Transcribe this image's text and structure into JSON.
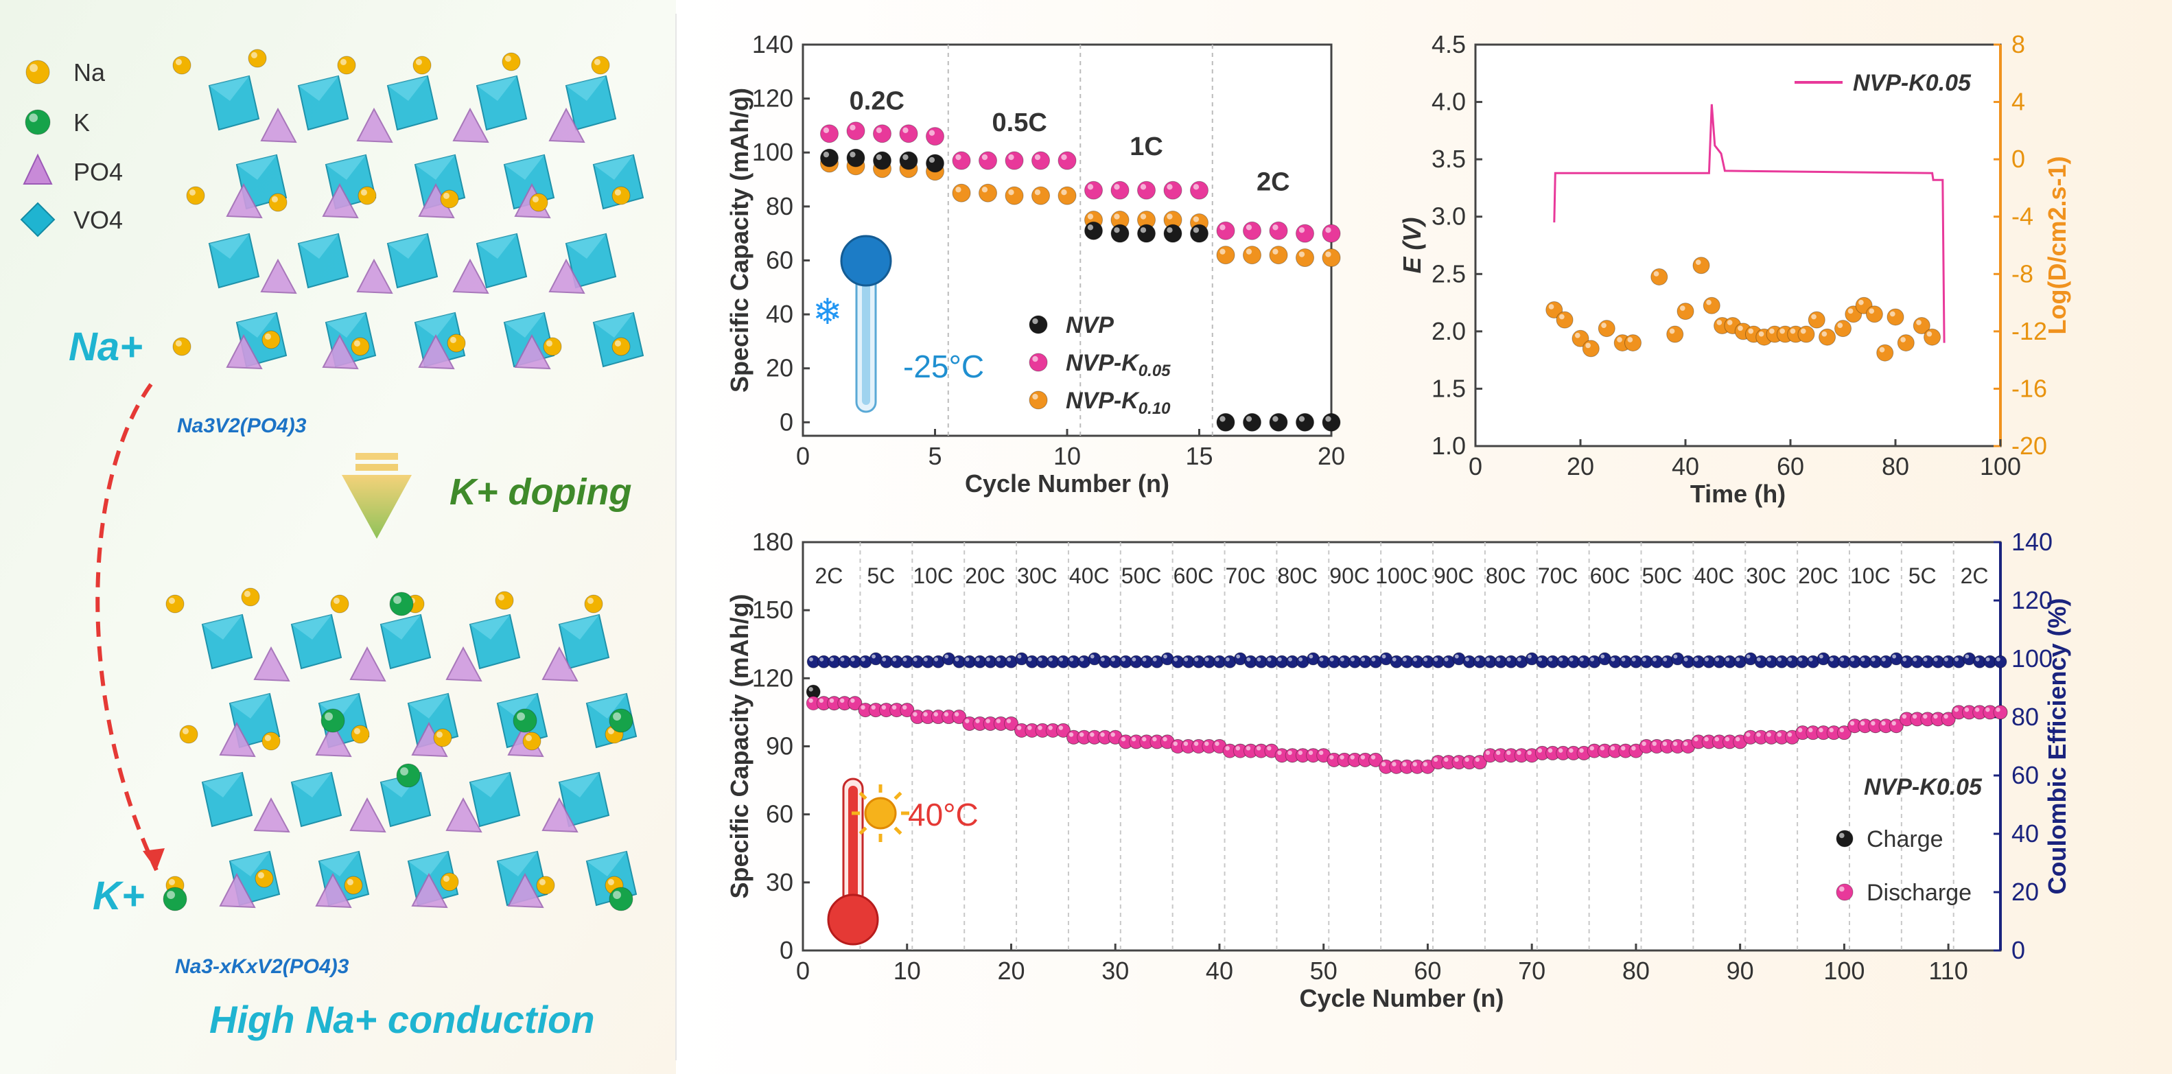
{
  "schematic": {
    "legend": [
      {
        "label": "Na",
        "color": "#f2b300"
      },
      {
        "label": "K",
        "color": "#16a34a"
      },
      {
        "label": "PO4",
        "color": "#c88ad8"
      },
      {
        "label": "VO4",
        "color": "#1fb4d1"
      }
    ],
    "na_ion_label": "Na+",
    "k_ion_label": "K+",
    "formula_top": "Na3V2(PO4)3",
    "formula_bottom": "Na3-xKxV2(PO4)3",
    "doping_label": "K+ doping",
    "caption": "High Na+ conduction"
  },
  "chart_data": [
    {
      "id": "rate_low_temp",
      "type": "scatter",
      "xlabel": "Cycle Number (n)",
      "ylabel": "Specific Capacity (mAh/g)",
      "xlim": [
        0,
        20
      ],
      "ylim": [
        -5,
        140
      ],
      "xticks": [
        0,
        5,
        10,
        15,
        20
      ],
      "yticks": [
        0,
        20,
        40,
        60,
        80,
        100,
        120,
        140
      ],
      "temperature": "-25°C",
      "rate_labels": [
        "0.2C",
        "0.5C",
        "1C",
        "2C"
      ],
      "series": [
        {
          "name": "NVP",
          "color": "#1a1a1a",
          "x": [
            1,
            2,
            3,
            4,
            5,
            6,
            7,
            8,
            9,
            10,
            11,
            12,
            13,
            14,
            15,
            16,
            17,
            18,
            19,
            20
          ],
          "values": [
            98,
            98,
            97,
            97,
            96,
            null,
            null,
            null,
            null,
            null,
            71,
            70,
            70,
            70,
            70,
            0,
            0,
            0,
            0,
            0
          ]
        },
        {
          "name": "NVP-K0.05",
          "color": "#e8399a",
          "x": [
            1,
            2,
            3,
            4,
            5,
            6,
            7,
            8,
            9,
            10,
            11,
            12,
            13,
            14,
            15,
            16,
            17,
            18,
            19,
            20
          ],
          "values": [
            107,
            108,
            107,
            107,
            106,
            97,
            97,
            97,
            97,
            97,
            86,
            86,
            86,
            86,
            86,
            71,
            71,
            71,
            70,
            70
          ]
        },
        {
          "name": "NVP-K0.10",
          "color": "#f0921e",
          "x": [
            1,
            2,
            3,
            4,
            5,
            6,
            7,
            8,
            9,
            10,
            11,
            12,
            13,
            14,
            15,
            16,
            17,
            18,
            19,
            20
          ],
          "values": [
            96,
            95,
            94,
            94,
            93,
            85,
            85,
            84,
            84,
            84,
            75,
            75,
            75,
            75,
            74,
            62,
            62,
            62,
            61,
            61
          ]
        }
      ],
      "legend_labels": [
        "NVP",
        "NVP-K",
        "NVP-K"
      ],
      "legend_subs": [
        "",
        "0.05",
        "0.10"
      ]
    },
    {
      "id": "gitt",
      "type": "line+scatter",
      "xlabel": "Time (h)",
      "ylabel": "E (V)",
      "ylabel_right": "Log(D/cm2.s-1)",
      "xlim": [
        0,
        100
      ],
      "ylim": [
        1.0,
        4.5
      ],
      "ylim_right": [
        -20,
        8
      ],
      "xticks": [
        0,
        20,
        40,
        60,
        80,
        100
      ],
      "yticks": [
        "1.0",
        "1.5",
        "2.0",
        "2.5",
        "3.0",
        "3.5",
        "4.0",
        "4.5"
      ],
      "yticks_right": [
        -20,
        -16,
        -12,
        -8,
        -4,
        0,
        4,
        8
      ],
      "legend": "NVP-K0.05",
      "voltage_curve": [
        [
          15,
          2.95
        ],
        [
          15.2,
          3.38
        ],
        [
          44.5,
          3.38
        ],
        [
          45,
          3.98
        ],
        [
          45.6,
          3.62
        ],
        [
          46.8,
          3.55
        ],
        [
          47.5,
          3.4
        ],
        [
          87,
          3.38
        ],
        [
          87.2,
          3.32
        ],
        [
          89,
          3.32
        ],
        [
          89.3,
          1.9
        ]
      ],
      "diffusivity": {
        "x": [
          15,
          17,
          20,
          22,
          25,
          28,
          30,
          35,
          38,
          40,
          43,
          45,
          47,
          49,
          51,
          53,
          55,
          57,
          59,
          61,
          63,
          65,
          67,
          70,
          72,
          74,
          76,
          78,
          80,
          82,
          85,
          87
        ],
        "y": [
          -10.5,
          -11.2,
          -12.5,
          -13.2,
          -11.8,
          -12.8,
          -12.8,
          -8.2,
          -12.2,
          -10.6,
          -7.4,
          -10.2,
          -11.6,
          -11.6,
          -12.0,
          -12.2,
          -12.4,
          -12.2,
          -12.2,
          -12.2,
          -12.2,
          -11.2,
          -12.4,
          -11.8,
          -10.8,
          -10.2,
          -10.8,
          -13.5,
          -11.0,
          -12.8,
          -11.6,
          -12.4
        ]
      }
    },
    {
      "id": "rate_high_temp",
      "type": "scatter",
      "xlabel": "Cycle Number (n)",
      "ylabel": "Specific Capacity (mAh/g)",
      "ylabel_right": "Coulombic Efficiency (%)",
      "xlim": [
        0,
        115
      ],
      "ylim": [
        0,
        180
      ],
      "ylim_right": [
        0,
        140
      ],
      "xticks": [
        0,
        10,
        20,
        30,
        40,
        50,
        60,
        70,
        80,
        90,
        100,
        110
      ],
      "yticks": [
        0,
        30,
        60,
        90,
        120,
        150,
        180
      ],
      "yticks_right": [
        0,
        20,
        40,
        60,
        80,
        100,
        120,
        140
      ],
      "temperature": "40°C",
      "sample_label": "NVP-K0.05",
      "rate_labels": [
        "2C",
        "5C",
        "10C",
        "20C",
        "30C",
        "40C",
        "50C",
        "60C",
        "70C",
        "80C",
        "90C",
        "100C",
        "90C",
        "80C",
        "70C",
        "60C",
        "50C",
        "40C",
        "30C",
        "20C",
        "10C",
        "5C",
        "2C"
      ],
      "block_capacity": [
        109,
        106,
        103,
        100,
        97,
        94,
        92,
        90,
        88,
        86,
        84,
        81,
        83,
        86,
        87,
        88,
        90,
        92,
        94,
        96,
        99,
        102,
        105
      ],
      "first_cycle_charge": 114,
      "coulombic_efficiency": 99,
      "series": [
        {
          "name": "Charge",
          "color": "#1a1a1a"
        },
        {
          "name": "Discharge",
          "color": "#e8399a"
        },
        {
          "name": "Coulombic Efficiency",
          "color": "#1a237e"
        }
      ]
    }
  ]
}
